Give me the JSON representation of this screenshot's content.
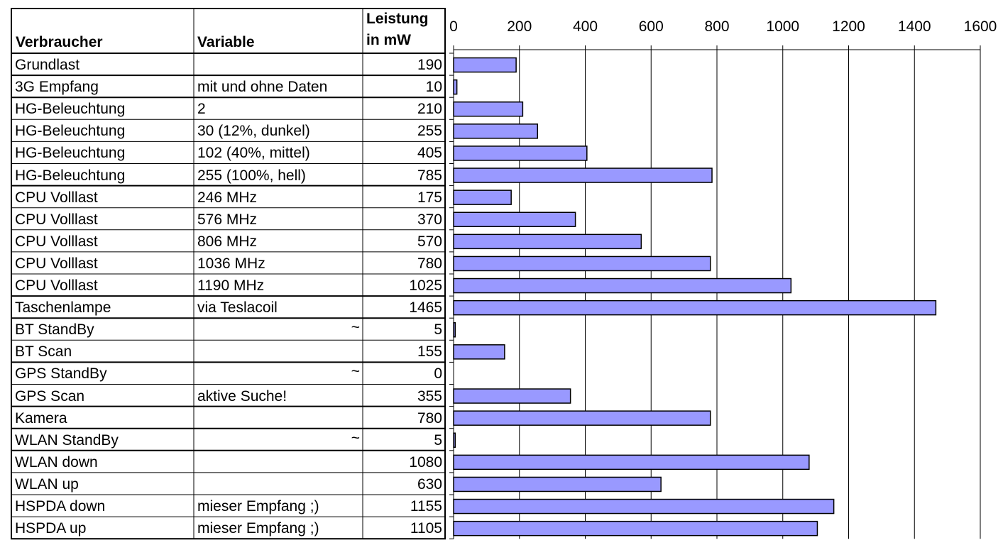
{
  "table": {
    "headers": {
      "consumer": "Verbraucher",
      "variable": "Variable",
      "power_line1": "Leistung",
      "power_line2": "in mW"
    },
    "rows": [
      {
        "consumer": "Grundlast",
        "variable": "",
        "power": "190",
        "group_start": false
      },
      {
        "consumer": "3G Empfang",
        "variable": "mit und ohne Daten",
        "power": "10",
        "group_start": true
      },
      {
        "consumer": "HG-Beleuchtung",
        "variable": "2",
        "power": "210",
        "group_start": true
      },
      {
        "consumer": "HG-Beleuchtung",
        "variable": "30 (12%, dunkel)",
        "power": "255",
        "group_start": false
      },
      {
        "consumer": "HG-Beleuchtung",
        "variable": "102 (40%, mittel)",
        "power": "405",
        "group_start": false
      },
      {
        "consumer": "HG-Beleuchtung",
        "variable": "255 (100%, hell)",
        "power": "785",
        "group_start": false
      },
      {
        "consumer": "CPU Volllast",
        "variable": "246 MHz",
        "power": "175",
        "group_start": true
      },
      {
        "consumer": "CPU Volllast",
        "variable": "576 MHz",
        "power": "370",
        "group_start": false
      },
      {
        "consumer": "CPU Volllast",
        "variable": "806 MHz",
        "power": "570",
        "group_start": false
      },
      {
        "consumer": "CPU Volllast",
        "variable": "1036 MHz",
        "power": "780",
        "group_start": false
      },
      {
        "consumer": "CPU Volllast",
        "variable": "1190 MHz",
        "power": "1025",
        "group_start": false
      },
      {
        "consumer": "Taschenlampe",
        "variable": "via Teslacoil",
        "power": "1465",
        "group_start": true
      },
      {
        "consumer": "BT StandBy",
        "variable": "~",
        "power": "5",
        "group_start": true
      },
      {
        "consumer": "BT Scan",
        "variable": "",
        "power": "155",
        "group_start": false
      },
      {
        "consumer": "GPS StandBy",
        "variable": "~",
        "power": "0",
        "group_start": true
      },
      {
        "consumer": "GPS Scan",
        "variable": "aktive Suche!",
        "power": "355",
        "group_start": false
      },
      {
        "consumer": "Kamera",
        "variable": "",
        "power": "780",
        "group_start": true
      },
      {
        "consumer": "WLAN StandBy",
        "variable": "~",
        "power": "5",
        "group_start": true
      },
      {
        "consumer": "WLAN down",
        "variable": "",
        "power": "1080",
        "group_start": true
      },
      {
        "consumer": "WLAN up",
        "variable": "",
        "power": "630",
        "group_start": false
      },
      {
        "consumer": "HSPDA down",
        "variable": "mieser Empfang ;)",
        "power": "1155",
        "group_start": false
      },
      {
        "consumer": "HSPDA up",
        "variable": "mieser Empfang ;)",
        "power": "1105",
        "group_start": false
      }
    ]
  },
  "chart_data": {
    "type": "bar",
    "orientation": "horizontal",
    "categories": [
      "Grundlast",
      "3G Empfang",
      "HG-Beleuchtung",
      "HG-Beleuchtung",
      "HG-Beleuchtung",
      "HG-Beleuchtung",
      "CPU Volllast",
      "CPU Volllast",
      "CPU Volllast",
      "CPU Volllast",
      "CPU Volllast",
      "Taschenlampe",
      "BT StandBy",
      "BT Scan",
      "GPS StandBy",
      "GPS Scan",
      "Kamera",
      "WLAN StandBy",
      "WLAN down",
      "WLAN up",
      "HSPDA down",
      "HSPDA up"
    ],
    "values": [
      190,
      10,
      210,
      255,
      405,
      785,
      175,
      370,
      570,
      780,
      1025,
      1465,
      5,
      155,
      0,
      355,
      780,
      5,
      1080,
      630,
      1155,
      1105
    ],
    "xlim": [
      0,
      1600
    ],
    "xticks": [
      "0",
      "200",
      "400",
      "600",
      "800",
      "1000",
      "1200",
      "1400",
      "1600"
    ],
    "x_axis_position": "top",
    "grid": true,
    "bar_color": "#9999ff",
    "bar_edge_color": "#000000",
    "title": "",
    "xlabel": "",
    "ylabel": ""
  }
}
